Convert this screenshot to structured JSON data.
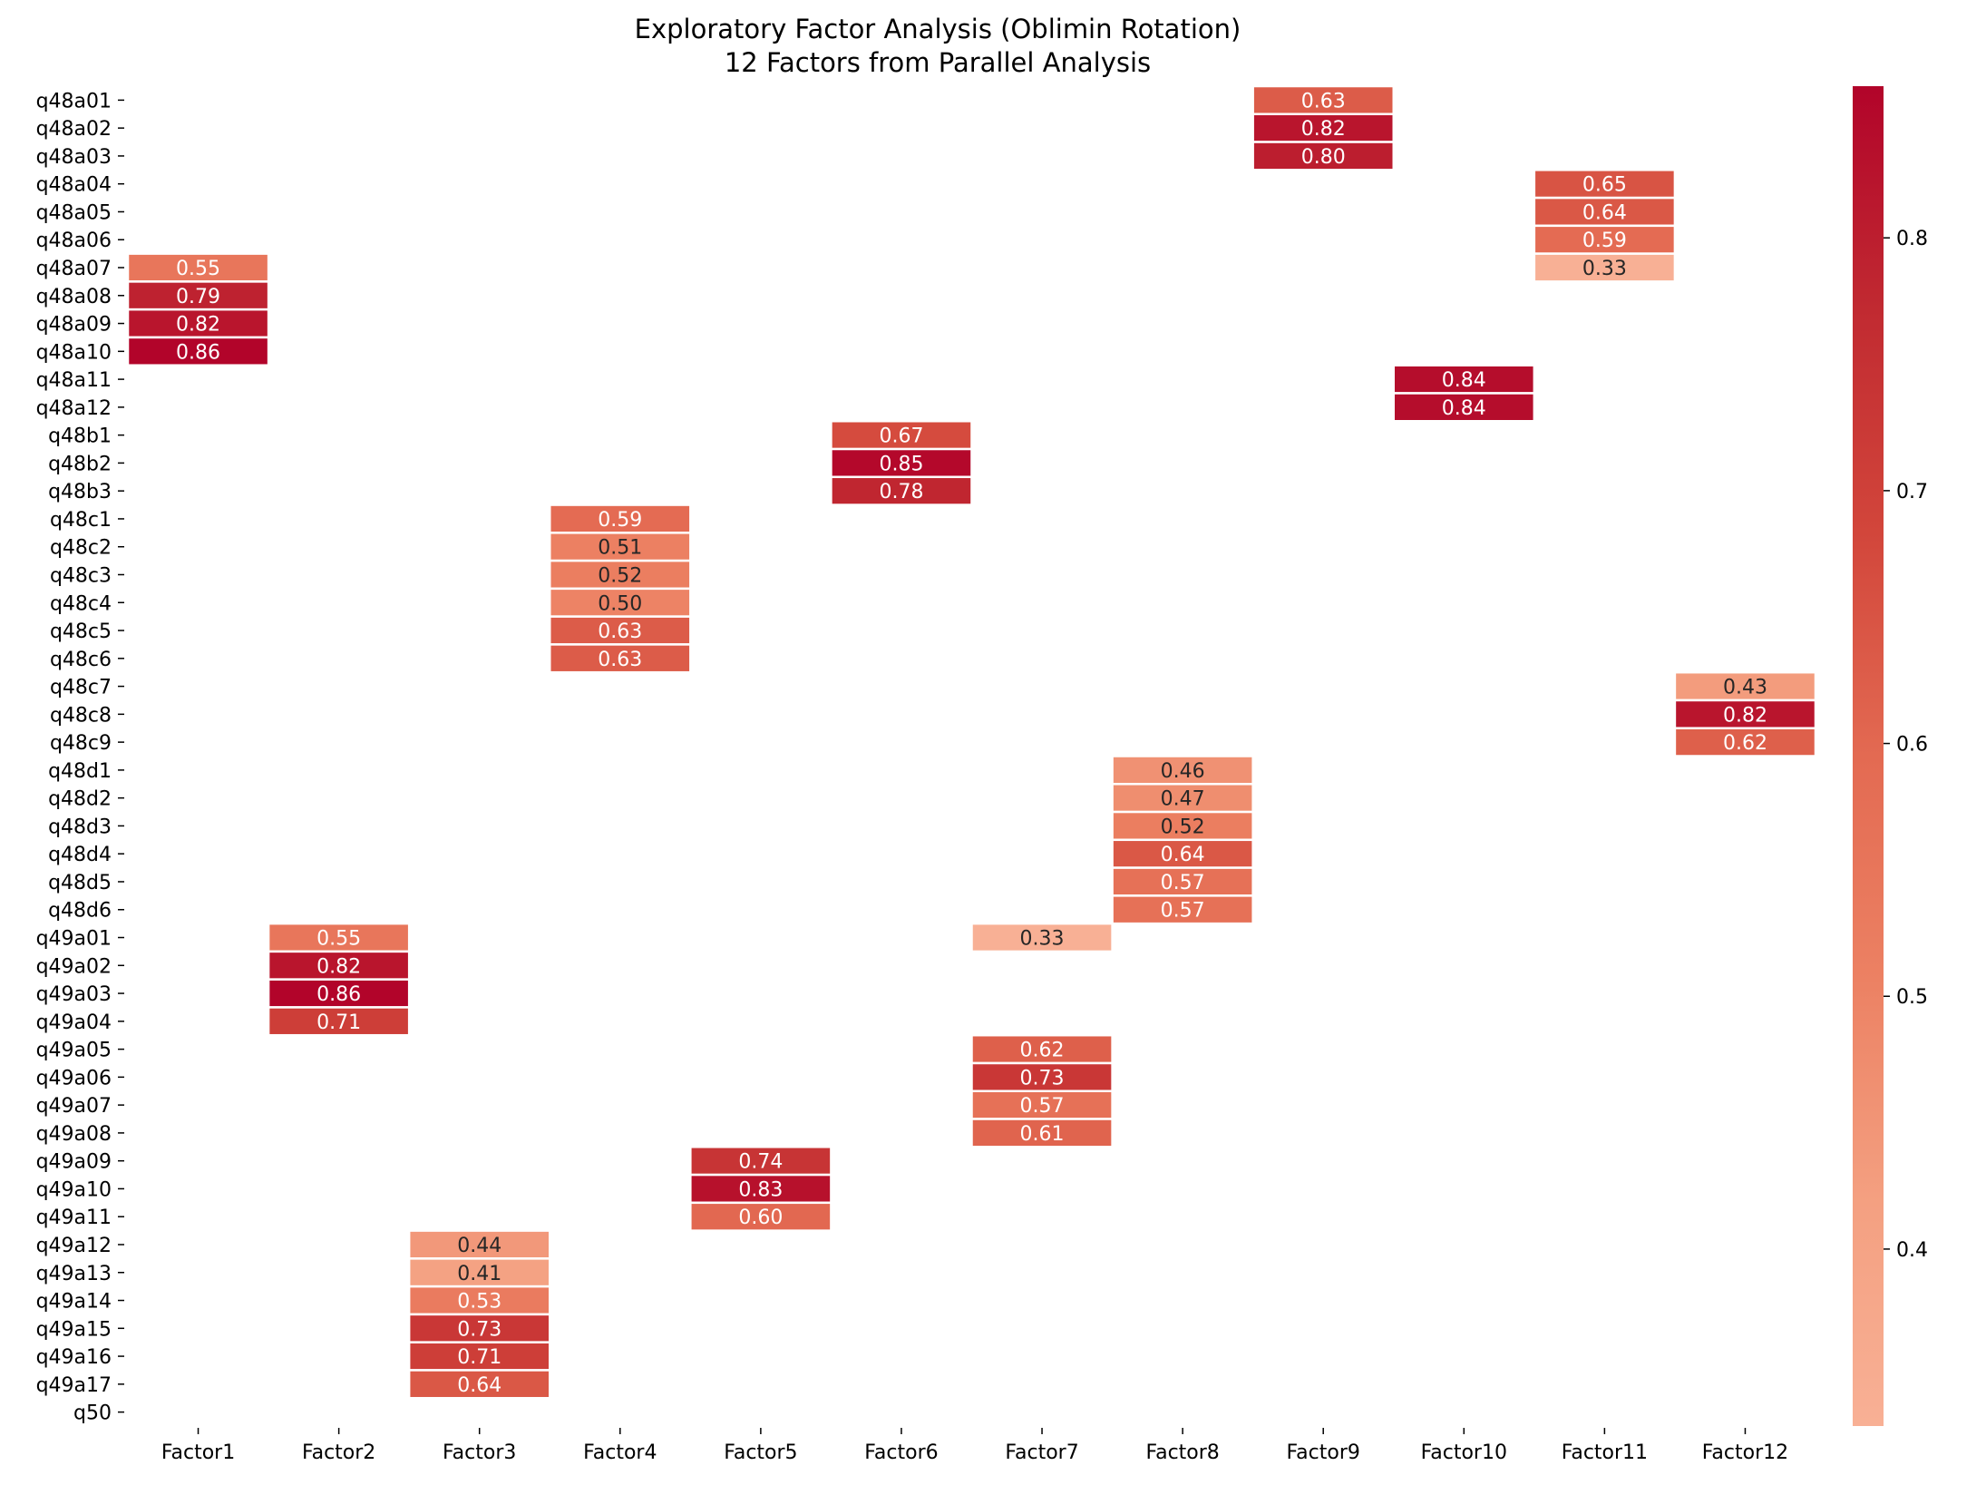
{
  "chart_data": {
    "type": "heatmap",
    "title": "Exploratory Factor Analysis (Oblimin Rotation)",
    "subtitle": "12 Factors from Parallel Analysis",
    "xlabel": "",
    "ylabel": "",
    "columns": [
      "Factor1",
      "Factor2",
      "Factor3",
      "Factor4",
      "Factor5",
      "Factor6",
      "Factor7",
      "Factor8",
      "Factor9",
      "Factor10",
      "Factor11",
      "Factor12"
    ],
    "rows": [
      "q48a01",
      "q48a02",
      "q48a03",
      "q48a04",
      "q48a05",
      "q48a06",
      "q48a07",
      "q48a08",
      "q48a09",
      "q48a10",
      "q48a11",
      "q48a12",
      "q48b1",
      "q48b2",
      "q48b3",
      "q48c1",
      "q48c2",
      "q48c3",
      "q48c4",
      "q48c5",
      "q48c6",
      "q48c7",
      "q48c8",
      "q48c9",
      "q48d1",
      "q48d2",
      "q48d3",
      "q48d4",
      "q48d5",
      "q48d6",
      "q49a01",
      "q49a02",
      "q49a03",
      "q49a04",
      "q49a05",
      "q49a06",
      "q49a07",
      "q49a08",
      "q49a09",
      "q49a10",
      "q49a11",
      "q49a12",
      "q49a13",
      "q49a14",
      "q49a15",
      "q49a16",
      "q49a17",
      "q50"
    ],
    "values": [
      [
        null,
        null,
        null,
        null,
        null,
        null,
        null,
        null,
        0.63,
        null,
        null,
        null
      ],
      [
        null,
        null,
        null,
        null,
        null,
        null,
        null,
        null,
        0.82,
        null,
        null,
        null
      ],
      [
        null,
        null,
        null,
        null,
        null,
        null,
        null,
        null,
        0.8,
        null,
        null,
        null
      ],
      [
        null,
        null,
        null,
        null,
        null,
        null,
        null,
        null,
        null,
        null,
        0.65,
        null
      ],
      [
        null,
        null,
        null,
        null,
        null,
        null,
        null,
        null,
        null,
        null,
        0.64,
        null
      ],
      [
        null,
        null,
        null,
        null,
        null,
        null,
        null,
        null,
        null,
        null,
        0.59,
        null
      ],
      [
        0.55,
        null,
        null,
        null,
        null,
        null,
        null,
        null,
        null,
        null,
        0.33,
        null
      ],
      [
        0.79,
        null,
        null,
        null,
        null,
        null,
        null,
        null,
        null,
        null,
        null,
        null
      ],
      [
        0.82,
        null,
        null,
        null,
        null,
        null,
        null,
        null,
        null,
        null,
        null,
        null
      ],
      [
        0.86,
        null,
        null,
        null,
        null,
        null,
        null,
        null,
        null,
        null,
        null,
        null
      ],
      [
        null,
        null,
        null,
        null,
        null,
        null,
        null,
        null,
        null,
        0.84,
        null,
        null
      ],
      [
        null,
        null,
        null,
        null,
        null,
        null,
        null,
        null,
        null,
        0.84,
        null,
        null
      ],
      [
        null,
        null,
        null,
        null,
        null,
        0.67,
        null,
        null,
        null,
        null,
        null,
        null
      ],
      [
        null,
        null,
        null,
        null,
        null,
        0.85,
        null,
        null,
        null,
        null,
        null,
        null
      ],
      [
        null,
        null,
        null,
        null,
        null,
        0.78,
        null,
        null,
        null,
        null,
        null,
        null
      ],
      [
        null,
        null,
        null,
        0.59,
        null,
        null,
        null,
        null,
        null,
        null,
        null,
        null
      ],
      [
        null,
        null,
        null,
        0.51,
        null,
        null,
        null,
        null,
        null,
        null,
        null,
        null
      ],
      [
        null,
        null,
        null,
        0.52,
        null,
        null,
        null,
        null,
        null,
        null,
        null,
        null
      ],
      [
        null,
        null,
        null,
        0.5,
        null,
        null,
        null,
        null,
        null,
        null,
        null,
        null
      ],
      [
        null,
        null,
        null,
        0.63,
        null,
        null,
        null,
        null,
        null,
        null,
        null,
        null
      ],
      [
        null,
        null,
        null,
        0.63,
        null,
        null,
        null,
        null,
        null,
        null,
        null,
        null
      ],
      [
        null,
        null,
        null,
        null,
        null,
        null,
        null,
        null,
        null,
        null,
        null,
        0.43
      ],
      [
        null,
        null,
        null,
        null,
        null,
        null,
        null,
        null,
        null,
        null,
        null,
        0.82
      ],
      [
        null,
        null,
        null,
        null,
        null,
        null,
        null,
        null,
        null,
        null,
        null,
        0.62
      ],
      [
        null,
        null,
        null,
        null,
        null,
        null,
        null,
        0.46,
        null,
        null,
        null,
        null
      ],
      [
        null,
        null,
        null,
        null,
        null,
        null,
        null,
        0.47,
        null,
        null,
        null,
        null
      ],
      [
        null,
        null,
        null,
        null,
        null,
        null,
        null,
        0.52,
        null,
        null,
        null,
        null
      ],
      [
        null,
        null,
        null,
        null,
        null,
        null,
        null,
        0.64,
        null,
        null,
        null,
        null
      ],
      [
        null,
        null,
        null,
        null,
        null,
        null,
        null,
        0.57,
        null,
        null,
        null,
        null
      ],
      [
        null,
        null,
        null,
        null,
        null,
        null,
        null,
        0.57,
        null,
        null,
        null,
        null
      ],
      [
        null,
        0.55,
        null,
        null,
        null,
        null,
        0.33,
        null,
        null,
        null,
        null,
        null
      ],
      [
        null,
        0.82,
        null,
        null,
        null,
        null,
        null,
        null,
        null,
        null,
        null,
        null
      ],
      [
        null,
        0.86,
        null,
        null,
        null,
        null,
        null,
        null,
        null,
        null,
        null,
        null
      ],
      [
        null,
        0.71,
        null,
        null,
        null,
        null,
        null,
        null,
        null,
        null,
        null,
        null
      ],
      [
        null,
        null,
        null,
        null,
        null,
        null,
        0.62,
        null,
        null,
        null,
        null,
        null
      ],
      [
        null,
        null,
        null,
        null,
        null,
        null,
        0.73,
        null,
        null,
        null,
        null,
        null
      ],
      [
        null,
        null,
        null,
        null,
        null,
        null,
        0.57,
        null,
        null,
        null,
        null,
        null
      ],
      [
        null,
        null,
        null,
        null,
        null,
        null,
        0.61,
        null,
        null,
        null,
        null,
        null
      ],
      [
        null,
        null,
        null,
        null,
        0.74,
        null,
        null,
        null,
        null,
        null,
        null,
        null
      ],
      [
        null,
        null,
        null,
        null,
        0.83,
        null,
        null,
        null,
        null,
        null,
        null,
        null
      ],
      [
        null,
        null,
        null,
        null,
        0.6,
        null,
        null,
        null,
        null,
        null,
        null,
        null
      ],
      [
        null,
        null,
        0.44,
        null,
        null,
        null,
        null,
        null,
        null,
        null,
        null,
        null
      ],
      [
        null,
        null,
        0.41,
        null,
        null,
        null,
        null,
        null,
        null,
        null,
        null,
        null
      ],
      [
        null,
        null,
        0.53,
        null,
        null,
        null,
        null,
        null,
        null,
        null,
        null,
        null
      ],
      [
        null,
        null,
        0.73,
        null,
        null,
        null,
        null,
        null,
        null,
        null,
        null,
        null
      ],
      [
        null,
        null,
        0.71,
        null,
        null,
        null,
        null,
        null,
        null,
        null,
        null,
        null
      ],
      [
        null,
        null,
        0.64,
        null,
        null,
        null,
        null,
        null,
        null,
        null,
        null,
        null
      ],
      [
        null,
        null,
        null,
        null,
        null,
        null,
        null,
        null,
        null,
        null,
        null,
        null
      ]
    ],
    "value_format": "0.00",
    "colormap": {
      "name": "Reds-based",
      "vmin": 0.33,
      "vmax": 0.86,
      "stops": [
        "#f8b095",
        "#f4a081",
        "#ec8163",
        "#e36a52",
        "#d2463b",
        "#c12a31",
        "#b2042a"
      ]
    },
    "colorbar": {
      "position": "right",
      "ticks": [
        0.4,
        0.5,
        0.6,
        0.7,
        0.8
      ],
      "tick_labels": [
        "0.4",
        "0.5",
        "0.6",
        "0.7",
        "0.8"
      ]
    },
    "cell_separator_color": "#ffffff",
    "text_color_dark": "#262626",
    "text_color_light": "#ffffff",
    "grid": false
  }
}
